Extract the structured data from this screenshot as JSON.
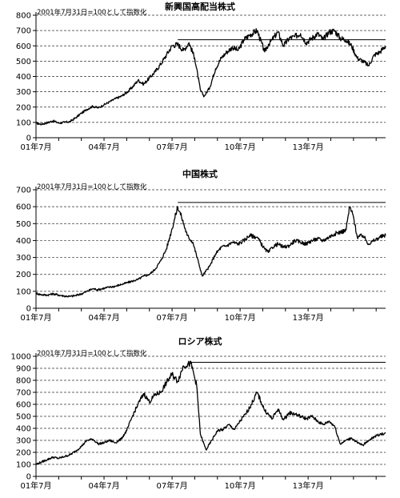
{
  "note": "2001年7月31日=100として指数化",
  "chart_data": [
    {
      "type": "line",
      "title": "新興国高配当株式",
      "subtitle": "2001年7月31日=100として指数化",
      "x_categories": [
        "01年7月",
        "04年7月",
        "07年7月",
        "10年7月",
        "13年7月"
      ],
      "x_range": [
        "2001-07",
        "2016-12"
      ],
      "ylim": [
        0,
        800
      ],
      "yticks": [
        0,
        100,
        200,
        300,
        400,
        500,
        600,
        700,
        800
      ],
      "grid": "horizontal dashed",
      "reference_line": {
        "from": "2007-10",
        "to": "2016-12",
        "value": 640
      },
      "series": [
        {
          "x": [
            "2001-07",
            "2001-10",
            "2002-01",
            "2002-04",
            "2002-07",
            "2002-10",
            "2003-01",
            "2003-04",
            "2003-07",
            "2003-10",
            "2004-01",
            "2004-04",
            "2004-07",
            "2004-10",
            "2005-01",
            "2005-04",
            "2005-07",
            "2005-10",
            "2006-01",
            "2006-04",
            "2006-07",
            "2006-10",
            "2007-01",
            "2007-04",
            "2007-07",
            "2007-10",
            "2008-01",
            "2008-04",
            "2008-07",
            "2008-10",
            "2008-12",
            "2009-03",
            "2009-06",
            "2009-09",
            "2009-12",
            "2010-03",
            "2010-06",
            "2010-09",
            "2010-12",
            "2011-04",
            "2011-08",
            "2011-10",
            "2011-12",
            "2012-03",
            "2012-06",
            "2012-09",
            "2012-12",
            "2013-03",
            "2013-06",
            "2013-09",
            "2013-12",
            "2014-03",
            "2014-06",
            "2014-09",
            "2014-12",
            "2015-03",
            "2015-06",
            "2015-09",
            "2015-12",
            "2016-03",
            "2016-06",
            "2016-09",
            "2016-12"
          ],
          "values": [
            95,
            88,
            98,
            110,
            96,
            100,
            105,
            130,
            160,
            185,
            205,
            195,
            215,
            235,
            255,
            270,
            295,
            330,
            375,
            350,
            390,
            430,
            480,
            540,
            600,
            610,
            570,
            620,
            520,
            310,
            270,
            330,
            450,
            520,
            560,
            590,
            570,
            640,
            670,
            700,
            560,
            610,
            640,
            690,
            600,
            650,
            660,
            680,
            620,
            650,
            680,
            640,
            690,
            700,
            650,
            640,
            600,
            520,
            500,
            470,
            540,
            560,
            600
          ]
        }
      ]
    },
    {
      "type": "line",
      "title": "中国株式",
      "subtitle": "2001年7月31日=100として指数化",
      "x_categories": [
        "01年7月",
        "04年7月",
        "07年7月",
        "10年7月",
        "13年7月"
      ],
      "x_range": [
        "2001-07",
        "2016-12"
      ],
      "ylim": [
        0,
        700
      ],
      "yticks": [
        0,
        100,
        200,
        300,
        400,
        500,
        600,
        700
      ],
      "grid": "horizontal dashed",
      "reference_line": {
        "from": "2007-10",
        "to": "2016-12",
        "value": 625
      },
      "series": [
        {
          "x": [
            "2001-07",
            "2001-10",
            "2002-01",
            "2002-04",
            "2002-07",
            "2002-10",
            "2003-01",
            "2003-04",
            "2003-07",
            "2003-10",
            "2004-01",
            "2004-04",
            "2004-07",
            "2004-10",
            "2005-01",
            "2005-04",
            "2005-07",
            "2005-10",
            "2006-01",
            "2006-04",
            "2006-07",
            "2006-10",
            "2007-01",
            "2007-04",
            "2007-07",
            "2007-10",
            "2007-12",
            "2008-03",
            "2008-06",
            "2008-09",
            "2008-11",
            "2009-03",
            "2009-06",
            "2009-09",
            "2009-12",
            "2010-03",
            "2010-06",
            "2010-09",
            "2010-12",
            "2011-04",
            "2011-08",
            "2011-10",
            "2011-12",
            "2012-03",
            "2012-06",
            "2012-09",
            "2012-12",
            "2013-03",
            "2013-06",
            "2013-09",
            "2013-12",
            "2014-03",
            "2014-06",
            "2014-09",
            "2014-12",
            "2015-03",
            "2015-05",
            "2015-07",
            "2015-09",
            "2015-12",
            "2016-03",
            "2016-06",
            "2016-09",
            "2016-12"
          ],
          "values": [
            88,
            80,
            78,
            85,
            78,
            72,
            70,
            75,
            85,
            100,
            115,
            110,
            118,
            125,
            130,
            140,
            150,
            160,
            170,
            190,
            200,
            230,
            280,
            350,
            470,
            600,
            540,
            430,
            390,
            270,
            190,
            250,
            320,
            360,
            370,
            390,
            380,
            400,
            430,
            420,
            350,
            330,
            360,
            380,
            360,
            370,
            400,
            390,
            380,
            400,
            410,
            400,
            420,
            440,
            450,
            460,
            600,
            540,
            420,
            430,
            380,
            400,
            420,
            430
          ]
        }
      ]
    },
    {
      "type": "line",
      "title": "ロシア株式",
      "subtitle": "2001年7月31日=100として指数化",
      "x_categories": [
        "01年7月",
        "04年7月",
        "07年7月",
        "10年7月",
        "13年7月"
      ],
      "x_range": [
        "2001-07",
        "2016-12"
      ],
      "ylim": [
        0,
        1000
      ],
      "yticks": [
        0,
        100,
        200,
        300,
        400,
        500,
        600,
        700,
        800,
        900,
        1000
      ],
      "grid": "horizontal dashed",
      "reference_line": {
        "from": "2008-05",
        "to": "2016-12",
        "value": 950
      },
      "series": [
        {
          "x": [
            "2001-07",
            "2001-10",
            "2002-01",
            "2002-04",
            "2002-07",
            "2002-10",
            "2003-01",
            "2003-04",
            "2003-07",
            "2003-10",
            "2004-01",
            "2004-04",
            "2004-07",
            "2004-10",
            "2005-01",
            "2005-04",
            "2005-07",
            "2005-10",
            "2006-01",
            "2006-04",
            "2006-07",
            "2006-10",
            "2007-01",
            "2007-04",
            "2007-07",
            "2007-10",
            "2008-01",
            "2008-05",
            "2008-08",
            "2008-10",
            "2009-01",
            "2009-04",
            "2009-07",
            "2009-10",
            "2010-01",
            "2010-04",
            "2010-07",
            "2010-10",
            "2011-01",
            "2011-04",
            "2011-08",
            "2011-12",
            "2012-03",
            "2012-06",
            "2012-09",
            "2012-12",
            "2013-03",
            "2013-06",
            "2013-09",
            "2013-12",
            "2014-03",
            "2014-06",
            "2014-09",
            "2014-12",
            "2015-03",
            "2015-06",
            "2015-09",
            "2015-12",
            "2016-03",
            "2016-06",
            "2016-09",
            "2016-12"
          ],
          "values": [
            100,
            120,
            140,
            160,
            150,
            165,
            180,
            210,
            250,
            300,
            310,
            270,
            280,
            300,
            280,
            310,
            380,
            500,
            600,
            690,
            620,
            680,
            700,
            780,
            850,
            790,
            920,
            940,
            760,
            350,
            220,
            300,
            380,
            390,
            430,
            390,
            460,
            520,
            600,
            700,
            550,
            480,
            560,
            470,
            530,
            520,
            500,
            480,
            500,
            460,
            430,
            460,
            420,
            270,
            300,
            320,
            280,
            260,
            300,
            330,
            350,
            360
          ]
        }
      ]
    }
  ]
}
